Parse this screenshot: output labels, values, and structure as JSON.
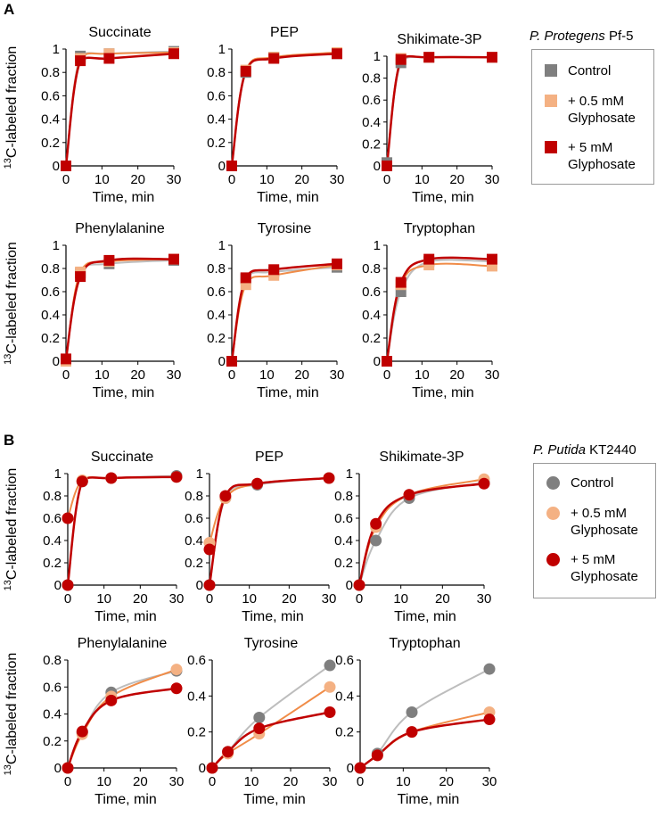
{
  "figure": {
    "panelA_label": "A",
    "panelB_label": "B",
    "legendA": {
      "title_species": "P. Protegens",
      "title_strain": " Pf-5",
      "entries": [
        {
          "label": "Control",
          "color": "#7f7f7f",
          "marker": "square"
        },
        {
          "label": "+ 0.5 mM\nGlyphosate",
          "color": "#f4b183",
          "marker": "square"
        },
        {
          "label": "+ 5 mM\nGlyphosate",
          "color": "#c00000",
          "marker": "square"
        }
      ]
    },
    "legendB": {
      "title_species": "P. Putida",
      "title_strain": " KT2440",
      "entries": [
        {
          "label": "Control",
          "color": "#7f7f7f",
          "marker": "circle"
        },
        {
          "label": "+ 0.5 mM\nGlyphosate",
          "color": "#f4b183",
          "marker": "circle"
        },
        {
          "label": "+ 5 mM\nGlyphosate",
          "color": "#c00000",
          "marker": "circle"
        }
      ]
    },
    "colors": {
      "control_line": "#bdbdbd",
      "control_marker": "#7f7f7f",
      "low_line": "#f08c48",
      "low_marker": "#f4b183",
      "high": "#c00000",
      "axis": "#000000"
    }
  },
  "chart_data": [
    {
      "panel": "A",
      "type": "line",
      "title": "Succinate",
      "marker": "square",
      "xlabel": "Time, min",
      "ylabel_sup": "13",
      "ylabel": "C-labeled fraction",
      "x": [
        0,
        4,
        12,
        30
      ],
      "xlim": [
        0,
        30
      ],
      "ylim": [
        0,
        1
      ],
      "xticks": [
        0,
        10,
        20,
        30
      ],
      "yticks": [
        "0",
        "0.2",
        "0.4",
        "0.6",
        "0.8",
        "1"
      ],
      "series": [
        {
          "name": "Control",
          "values": [
            0,
            0.94,
            0.96,
            0.98
          ]
        },
        {
          "name": "+ 0.5 mM Glyphosate",
          "values": [
            0,
            0.92,
            0.96,
            0.97
          ]
        },
        {
          "name": "+ 5 mM Glyphosate",
          "values": [
            0,
            0.9,
            0.92,
            0.96
          ]
        }
      ]
    },
    {
      "panel": "A",
      "type": "line",
      "title": "PEP",
      "marker": "square",
      "xlabel": "Time, min",
      "ylabel": "",
      "x": [
        0,
        4,
        12,
        30
      ],
      "xlim": [
        0,
        30
      ],
      "ylim": [
        0,
        1
      ],
      "xticks": [
        0,
        10,
        20,
        30
      ],
      "yticks": [
        "0",
        "0.2",
        "0.4",
        "0.6",
        "0.8",
        "1"
      ],
      "series": [
        {
          "name": "Control",
          "values": [
            0,
            0.8,
            0.93,
            0.96
          ]
        },
        {
          "name": "+ 0.5 mM Glyphosate",
          "values": [
            0,
            0.82,
            0.93,
            0.97
          ]
        },
        {
          "name": "+ 5 mM Glyphosate",
          "values": [
            0,
            0.81,
            0.92,
            0.96
          ]
        }
      ]
    },
    {
      "panel": "A",
      "type": "line",
      "title": "Shikimate-3P",
      "marker": "square",
      "xlabel": "Time, min",
      "ylabel": "",
      "x": [
        0,
        4,
        12,
        30
      ],
      "xlim": [
        0,
        30
      ],
      "ylim": [
        0,
        1
      ],
      "xticks": [
        0,
        10,
        20,
        30
      ],
      "yticks": [
        "0",
        "0.2",
        "0.4",
        "0.6",
        "0.8",
        "1"
      ],
      "series": [
        {
          "name": "Control",
          "values": [
            0.03,
            0.94,
            0.99,
            0.99
          ]
        },
        {
          "name": "+ 0.5 mM Glyphosate",
          "values": [
            0,
            0.98,
            0.99,
            0.99
          ]
        },
        {
          "name": "+ 5 mM Glyphosate",
          "values": [
            0,
            0.97,
            0.99,
            0.99
          ]
        }
      ]
    },
    {
      "panel": "A",
      "type": "line",
      "title": "Phenylalanine",
      "marker": "square",
      "xlabel": "Time, min",
      "ylabel_sup": "13",
      "ylabel": "C-labeled fraction",
      "x": [
        0,
        4,
        12,
        30
      ],
      "xlim": [
        0,
        30
      ],
      "ylim": [
        0,
        1
      ],
      "xticks": [
        0,
        10,
        20,
        30
      ],
      "yticks": [
        "0",
        "0.2",
        "0.4",
        "0.6",
        "0.8",
        "1"
      ],
      "series": [
        {
          "name": "Control",
          "values": [
            0,
            0.76,
            0.84,
            0.87
          ]
        },
        {
          "name": "+ 0.5 mM Glyphosate",
          "values": [
            0,
            0.77,
            0.86,
            0.88
          ]
        },
        {
          "name": "+ 5 mM Glyphosate",
          "values": [
            0.02,
            0.73,
            0.87,
            0.88
          ]
        }
      ]
    },
    {
      "panel": "A",
      "type": "line",
      "title": "Tyrosine",
      "marker": "square",
      "xlabel": "Time, min",
      "ylabel": "",
      "x": [
        0,
        4,
        12,
        30
      ],
      "xlim": [
        0,
        30
      ],
      "ylim": [
        0,
        1
      ],
      "xticks": [
        0,
        10,
        20,
        30
      ],
      "yticks": [
        "0",
        "0.2",
        "0.4",
        "0.6",
        "0.8",
        "1"
      ],
      "series": [
        {
          "name": "Control",
          "values": [
            0,
            0.71,
            0.77,
            0.81
          ]
        },
        {
          "name": "+ 0.5 mM Glyphosate",
          "values": [
            0,
            0.66,
            0.74,
            0.83
          ]
        },
        {
          "name": "+ 5 mM Glyphosate",
          "values": [
            0,
            0.72,
            0.79,
            0.84
          ]
        }
      ]
    },
    {
      "panel": "A",
      "type": "line",
      "title": "Tryptophan",
      "marker": "square",
      "xlabel": "Time, min",
      "ylabel": "",
      "x": [
        0,
        4,
        12,
        30
      ],
      "xlim": [
        0,
        30
      ],
      "ylim": [
        0,
        1
      ],
      "xticks": [
        0,
        10,
        20,
        30
      ],
      "yticks": [
        "0",
        "0.2",
        "0.4",
        "0.6",
        "0.8",
        "1"
      ],
      "series": [
        {
          "name": "Control",
          "values": [
            0,
            0.6,
            0.86,
            0.86
          ]
        },
        {
          "name": "+ 0.5 mM Glyphosate",
          "values": [
            0,
            0.66,
            0.83,
            0.82
          ]
        },
        {
          "name": "+ 5 mM Glyphosate",
          "values": [
            0,
            0.68,
            0.88,
            0.88
          ]
        }
      ]
    },
    {
      "panel": "B",
      "type": "line",
      "title": "Succinate",
      "marker": "circle",
      "xlabel": "Time, min",
      "ylabel_sup": "13",
      "ylabel": "C-labeled fraction",
      "x": [
        0,
        4,
        12,
        30
      ],
      "xlim": [
        0,
        30
      ],
      "ylim": [
        0,
        1
      ],
      "xticks": [
        0,
        10,
        20,
        30
      ],
      "yticks": [
        "0",
        "0.2",
        "0.4",
        "0.6",
        "0.8",
        "1"
      ],
      "series": [
        {
          "name": "Control",
          "values": [
            0,
            0.93,
            0.96,
            0.98
          ]
        },
        {
          "name": "+ 0.5 mM Glyphosate",
          "values": [
            0.6,
            0.94,
            0.96,
            0.97
          ]
        },
        {
          "name": "+ 5 mM Glyphosate",
          "values": [
            0,
            0.93,
            0.96,
            0.97
          ]
        }
      ],
      "extra_points": [
        {
          "series": "+ 5 mM Glyphosate",
          "x": 0,
          "y": 0.6
        }
      ]
    },
    {
      "panel": "B",
      "type": "line",
      "title": "PEP",
      "marker": "circle",
      "xlabel": "Time, min",
      "ylabel": "",
      "x": [
        0,
        4,
        12,
        30
      ],
      "xlim": [
        0,
        30
      ],
      "ylim": [
        0,
        1
      ],
      "xticks": [
        0,
        10,
        20,
        30
      ],
      "yticks": [
        "0",
        "0.2",
        "0.4",
        "0.6",
        "0.8",
        "1"
      ],
      "series": [
        {
          "name": "Control",
          "values": [
            0,
            0.78,
            0.9,
            0.96
          ]
        },
        {
          "name": "+ 0.5 mM Glyphosate",
          "values": [
            0.38,
            0.78,
            0.91,
            0.96
          ]
        },
        {
          "name": "+ 5 mM Glyphosate",
          "values": [
            0,
            0.8,
            0.91,
            0.96
          ]
        }
      ],
      "extra_points": [
        {
          "series": "+ 5 mM Glyphosate",
          "x": 0,
          "y": 0.32
        }
      ]
    },
    {
      "panel": "B",
      "type": "line",
      "title": "Shikimate-3P",
      "marker": "circle",
      "xlabel": "Time, min",
      "ylabel": "",
      "x": [
        0,
        4,
        12,
        30
      ],
      "xlim": [
        0,
        30
      ],
      "ylim": [
        0,
        1
      ],
      "xticks": [
        0,
        10,
        20,
        30
      ],
      "yticks": [
        "0",
        "0.2",
        "0.4",
        "0.6",
        "0.8",
        "1"
      ],
      "series": [
        {
          "name": "Control",
          "values": [
            0,
            0.4,
            0.78,
            0.92
          ]
        },
        {
          "name": "+ 0.5 mM Glyphosate",
          "values": [
            0,
            0.52,
            0.81,
            0.95
          ]
        },
        {
          "name": "+ 5 mM Glyphosate",
          "values": [
            0,
            0.55,
            0.81,
            0.91
          ]
        }
      ]
    },
    {
      "panel": "B",
      "type": "line",
      "title": "Phenylalanine",
      "marker": "circle",
      "xlabel": "Time, min",
      "ylabel_sup": "13",
      "ylabel": "C-labeled fraction",
      "x": [
        0,
        4,
        12,
        30
      ],
      "xlim": [
        0,
        30
      ],
      "ylim": [
        0,
        0.8
      ],
      "xticks": [
        0,
        10,
        20,
        30
      ],
      "yticks": [
        "0",
        "0.2",
        "0.4",
        "0.6",
        "0.8"
      ],
      "series": [
        {
          "name": "Control",
          "values": [
            0,
            0.26,
            0.56,
            0.72
          ]
        },
        {
          "name": "+ 0.5 mM Glyphosate",
          "values": [
            0,
            0.25,
            0.53,
            0.73
          ]
        },
        {
          "name": "+ 5 mM Glyphosate",
          "values": [
            0,
            0.27,
            0.5,
            0.59
          ]
        }
      ]
    },
    {
      "panel": "B",
      "type": "line",
      "title": "Tyrosine",
      "marker": "circle",
      "xlabel": "Time, min",
      "ylabel": "",
      "x": [
        0,
        4,
        12,
        30
      ],
      "xlim": [
        0,
        30
      ],
      "ylim": [
        0,
        0.6
      ],
      "xticks": [
        0,
        10,
        20,
        30
      ],
      "yticks": [
        "0",
        "0.2",
        "0.4",
        "0.6"
      ],
      "series": [
        {
          "name": "Control",
          "values": [
            0,
            0.09,
            0.28,
            0.57
          ]
        },
        {
          "name": "+ 0.5 mM Glyphosate",
          "values": [
            0,
            0.08,
            0.19,
            0.45
          ]
        },
        {
          "name": "+ 5 mM Glyphosate",
          "values": [
            0,
            0.09,
            0.22,
            0.31
          ]
        }
      ]
    },
    {
      "panel": "B",
      "type": "line",
      "title": "Tryptophan",
      "marker": "circle",
      "xlabel": "Time, min",
      "ylabel": "",
      "x": [
        0,
        4,
        12,
        30
      ],
      "xlim": [
        0,
        30
      ],
      "ylim": [
        0,
        0.6
      ],
      "xticks": [
        0,
        10,
        20,
        30
      ],
      "yticks": [
        "0",
        "0.2",
        "0.4",
        "0.6"
      ],
      "series": [
        {
          "name": "Control",
          "values": [
            0,
            0.08,
            0.31,
            0.55
          ]
        },
        {
          "name": "+ 0.5 mM Glyphosate",
          "values": [
            0,
            0.07,
            0.2,
            0.31
          ]
        },
        {
          "name": "+ 5 mM Glyphosate",
          "values": [
            0,
            0.07,
            0.2,
            0.27
          ]
        }
      ]
    }
  ]
}
